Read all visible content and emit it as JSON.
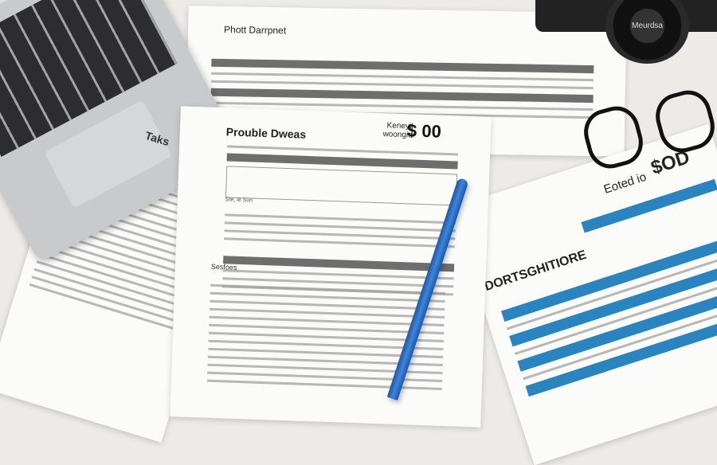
{
  "back_form": {
    "title": "Phott Darrpnet"
  },
  "main_form": {
    "title": "Prouble Dweas",
    "label": "Keneyt woongier",
    "amount": "$ 00",
    "row_label": "Ste, ie Sun",
    "section": "Sesfoes"
  },
  "left_form": {
    "title": "Taks"
  },
  "blue_form": {
    "title": "DORTSGHITIORE",
    "header_label": "Eoted io",
    "amount": "$OD"
  },
  "camera": {
    "lens_text": "Meurdsa"
  },
  "colors": {
    "desk": "#ecebe8",
    "accent_blue": "#2a84c0",
    "pen_blue": "#2d6fc4"
  }
}
